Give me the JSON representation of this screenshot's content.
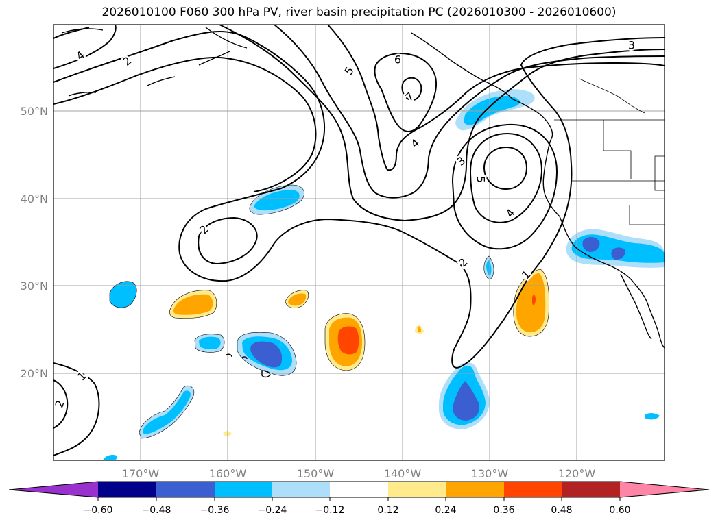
{
  "title": "2026010100 F060 300 hPa PV, river basin precipitation PC (2026010300 - 2026010600)",
  "map": {
    "lon_labels": [
      "170°W",
      "160°W",
      "150°W",
      "140°W",
      "130°W",
      "120°W"
    ],
    "lat_labels": [
      "50°N",
      "40°N",
      "30°N",
      "20°N"
    ],
    "contour_labels": [
      "4",
      "2",
      "5",
      "6",
      "7",
      "3",
      "4",
      "3",
      "5",
      "4",
      "2",
      "2",
      "1",
      "1",
      "2"
    ]
  },
  "colorbar": {
    "tick_labels": [
      "−0.60",
      "−0.48",
      "−0.36",
      "−0.24",
      "−0.12",
      "0.12",
      "0.24",
      "0.36",
      "0.48",
      "0.60"
    ],
    "colors": [
      "#9932CC",
      "#00008B",
      "#3B5ED1",
      "#00BFFF",
      "#ADDFFA",
      "#FFFFFF",
      "#FFEA8C",
      "#FFA500",
      "#FF4500",
      "#B22222",
      "#FF85A6"
    ]
  }
}
